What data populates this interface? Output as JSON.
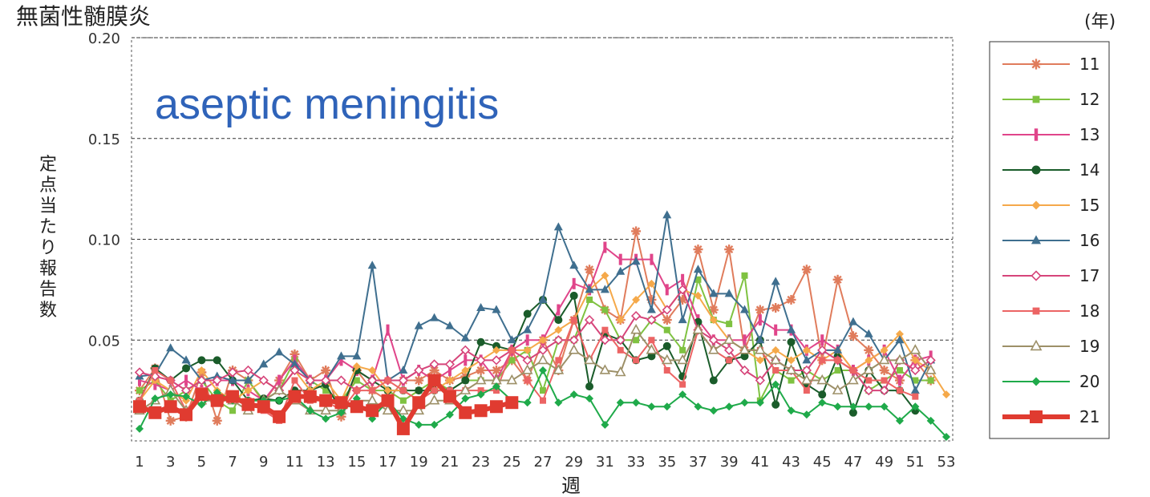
{
  "chart_data": {
    "type": "line",
    "title": "無菌性髄膜炎",
    "subtitle": "aseptic meningitis",
    "xlabel": "週",
    "ylabel": "定点当たり報告数",
    "legend_title": "(年)",
    "legend_position": "right",
    "grid": "horizontal dashed",
    "xlim": [
      1,
      53
    ],
    "ylim": [
      0,
      0.2
    ],
    "x_ticks": [
      "1",
      "3",
      "5",
      "7",
      "9",
      "11",
      "13",
      "15",
      "17",
      "19",
      "21",
      "23",
      "25",
      "27",
      "29",
      "31",
      "33",
      "35",
      "37",
      "39",
      "41",
      "43",
      "45",
      "47",
      "49",
      "51",
      "53"
    ],
    "y_ticks": [
      "0.05",
      "0.10",
      "0.15",
      "0.20"
    ],
    "series": [
      {
        "name": "11",
        "color": "#e07c5c",
        "marker": "asterisk",
        "width": 2,
        "values": [
          0.025,
          0.036,
          0.01,
          0.012,
          0.034,
          0.01,
          0.035,
          0.03,
          0.019,
          0.03,
          0.043,
          0.03,
          0.035,
          0.012,
          0.035,
          0.025,
          0.02,
          0.03,
          0.03,
          0.035,
          0.03,
          0.032,
          0.035,
          0.035,
          0.04,
          0.03,
          0.05,
          0.035,
          0.06,
          0.085,
          0.065,
          0.06,
          0.104,
          0.07,
          0.06,
          0.07,
          0.095,
          0.065,
          0.095,
          0.045,
          0.065,
          0.066,
          0.07,
          0.085,
          0.04,
          0.08,
          0.052,
          0.045,
          0.035,
          0.03,
          0.04,
          0.03
        ]
      },
      {
        "name": "12",
        "color": "#7fc241",
        "marker": "square",
        "width": 2,
        "values": [
          0.025,
          0.03,
          0.02,
          0.025,
          0.03,
          0.02,
          0.015,
          0.03,
          0.02,
          0.025,
          0.04,
          0.03,
          0.025,
          0.02,
          0.03,
          0.025,
          0.025,
          0.02,
          0.025,
          0.03,
          0.025,
          0.03,
          0.03,
          0.03,
          0.04,
          0.045,
          0.025,
          0.05,
          0.05,
          0.07,
          0.065,
          0.05,
          0.05,
          0.06,
          0.055,
          0.045,
          0.08,
          0.06,
          0.058,
          0.082,
          0.02,
          0.035,
          0.03,
          0.035,
          0.03,
          0.035,
          0.035,
          0.025,
          0.03,
          0.035,
          0.03,
          0.03
        ]
      },
      {
        "name": "13",
        "color": "#e0458a",
        "marker": "bar",
        "width": 2,
        "values": [
          0.03,
          0.028,
          0.025,
          0.03,
          0.025,
          0.03,
          0.03,
          0.025,
          0.02,
          0.03,
          0.04,
          0.03,
          0.03,
          0.04,
          0.035,
          0.03,
          0.055,
          0.03,
          0.035,
          0.03,
          0.035,
          0.04,
          0.04,
          0.03,
          0.045,
          0.05,
          0.05,
          0.065,
          0.078,
          0.075,
          0.096,
          0.09,
          0.09,
          0.09,
          0.075,
          0.08,
          0.06,
          0.05,
          0.05,
          0.05,
          0.06,
          0.055,
          0.055,
          0.045,
          0.05,
          0.045,
          0.035,
          0.04,
          0.045,
          0.03,
          0.04,
          0.042
        ]
      },
      {
        "name": "14",
        "color": "#1a5c2a",
        "marker": "circle",
        "width": 2,
        "values": [
          0.02,
          0.036,
          0.03,
          0.036,
          0.04,
          0.04,
          0.03,
          0.02,
          0.021,
          0.02,
          0.025,
          0.025,
          0.028,
          0.015,
          0.035,
          0.03,
          0.025,
          0.025,
          0.025,
          0.025,
          0.025,
          0.03,
          0.049,
          0.047,
          0.045,
          0.063,
          0.07,
          0.06,
          0.072,
          0.027,
          0.053,
          0.05,
          0.04,
          0.042,
          0.047,
          0.032,
          0.059,
          0.03,
          0.04,
          0.042,
          0.05,
          0.018,
          0.049,
          0.028,
          0.023,
          0.042,
          0.014,
          0.035,
          0.025,
          0.025,
          0.015
        ]
      },
      {
        "name": "15",
        "color": "#f5a94a",
        "marker": "diamond",
        "width": 2,
        "values": [
          0.02,
          0.03,
          0.025,
          0.02,
          0.035,
          0.025,
          0.02,
          0.025,
          0.03,
          0.025,
          0.035,
          0.025,
          0.03,
          0.02,
          0.037,
          0.035,
          0.025,
          0.025,
          0.02,
          0.025,
          0.03,
          0.035,
          0.04,
          0.045,
          0.045,
          0.045,
          0.05,
          0.055,
          0.06,
          0.075,
          0.082,
          0.06,
          0.07,
          0.078,
          0.065,
          0.075,
          0.072,
          0.06,
          0.05,
          0.045,
          0.04,
          0.045,
          0.04,
          0.045,
          0.04,
          0.045,
          0.035,
          0.04,
          0.045,
          0.053,
          0.04,
          0.035,
          0.023
        ]
      },
      {
        "name": "16",
        "color": "#3f6f8f",
        "marker": "triangle",
        "width": 2,
        "values": [
          0.032,
          0.033,
          0.046,
          0.04,
          0.03,
          0.032,
          0.03,
          0.03,
          0.038,
          0.044,
          0.038,
          0.03,
          0.03,
          0.042,
          0.042,
          0.087,
          0.03,
          0.035,
          0.057,
          0.061,
          0.057,
          0.051,
          0.066,
          0.065,
          0.05,
          0.055,
          0.07,
          0.106,
          0.087,
          0.075,
          0.075,
          0.084,
          0.089,
          0.065,
          0.112,
          0.06,
          0.085,
          0.073,
          0.073,
          0.065,
          0.05,
          0.079,
          0.055,
          0.04,
          0.045,
          0.045,
          0.059,
          0.053,
          0.04,
          0.05,
          0.025,
          0.04
        ]
      },
      {
        "name": "17",
        "color": "#d6457a",
        "marker": "diamond-open",
        "width": 2,
        "values": [
          0.034,
          0.032,
          0.03,
          0.025,
          0.03,
          0.03,
          0.034,
          0.035,
          0.03,
          0.025,
          0.035,
          0.03,
          0.03,
          0.03,
          0.025,
          0.03,
          0.03,
          0.03,
          0.035,
          0.038,
          0.038,
          0.045,
          0.04,
          0.04,
          0.045,
          0.04,
          0.045,
          0.05,
          0.05,
          0.06,
          0.05,
          0.05,
          0.062,
          0.06,
          0.065,
          0.075,
          0.055,
          0.05,
          0.045,
          0.035,
          0.03,
          0.04,
          0.035,
          0.035,
          0.045,
          0.04,
          0.035,
          0.025,
          0.025,
          0.04,
          0.035,
          0.04
        ]
      },
      {
        "name": "18",
        "color": "#ec6464",
        "marker": "square",
        "width": 2,
        "values": [
          0.02,
          0.035,
          0.03,
          0.015,
          0.025,
          0.02,
          0.02,
          0.02,
          0.015,
          0.01,
          0.03,
          0.02,
          0.02,
          0.015,
          0.025,
          0.025,
          0.03,
          0.025,
          0.02,
          0.025,
          0.025,
          0.025,
          0.025,
          0.025,
          0.045,
          0.03,
          0.02,
          0.04,
          0.06,
          0.04,
          0.055,
          0.045,
          0.04,
          0.05,
          0.035,
          0.028,
          0.055,
          0.045,
          0.04,
          0.045,
          0.045,
          0.035,
          0.035,
          0.025,
          0.04,
          0.04,
          0.035,
          0.03,
          0.03,
          0.025,
          0.022
        ]
      },
      {
        "name": "19",
        "color": "#9d9068",
        "marker": "triangle-open",
        "width": 2,
        "values": [
          0.015,
          0.02,
          0.025,
          0.015,
          0.02,
          0.02,
          0.02,
          0.015,
          0.02,
          0.025,
          0.02,
          0.015,
          0.015,
          0.015,
          0.02,
          0.02,
          0.015,
          0.015,
          0.015,
          0.02,
          0.02,
          0.025,
          0.03,
          0.03,
          0.03,
          0.035,
          0.04,
          0.035,
          0.045,
          0.04,
          0.035,
          0.034,
          0.055,
          0.045,
          0.04,
          0.04,
          0.055,
          0.045,
          0.05,
          0.045,
          0.045,
          0.04,
          0.035,
          0.03,
          0.03,
          0.025,
          0.03,
          0.035,
          0.04,
          0.04,
          0.045,
          0.035
        ]
      },
      {
        "name": "20",
        "color": "#1faa4a",
        "marker": "diamond",
        "width": 2,
        "values": [
          0.006,
          0.021,
          0.023,
          0.022,
          0.018,
          0.024,
          0.02,
          0.02,
          0.02,
          0.02,
          0.022,
          0.015,
          0.011,
          0.014,
          0.021,
          0.011,
          0.02,
          0.011,
          0.008,
          0.008,
          0.013,
          0.021,
          0.023,
          0.027,
          0.02,
          0.019,
          0.035,
          0.019,
          0.023,
          0.021,
          0.008,
          0.019,
          0.019,
          0.017,
          0.017,
          0.023,
          0.017,
          0.015,
          0.017,
          0.019,
          0.019,
          0.028,
          0.015,
          0.013,
          0.019,
          0.017,
          0.017,
          0.017,
          0.017,
          0.01,
          0.017,
          0.01,
          0.002
        ]
      },
      {
        "name": "21",
        "color": "#e03b30",
        "marker": "square-big",
        "width": 6,
        "values": [
          0.017,
          0.014,
          0.017,
          0.013,
          0.023,
          0.02,
          0.022,
          0.018,
          0.017,
          0.012,
          0.022,
          0.022,
          0.02,
          0.019,
          0.017,
          0.015,
          0.02,
          0.006,
          0.019,
          0.03,
          0.022,
          0.014,
          0.015,
          0.017,
          0.019
        ]
      }
    ]
  }
}
